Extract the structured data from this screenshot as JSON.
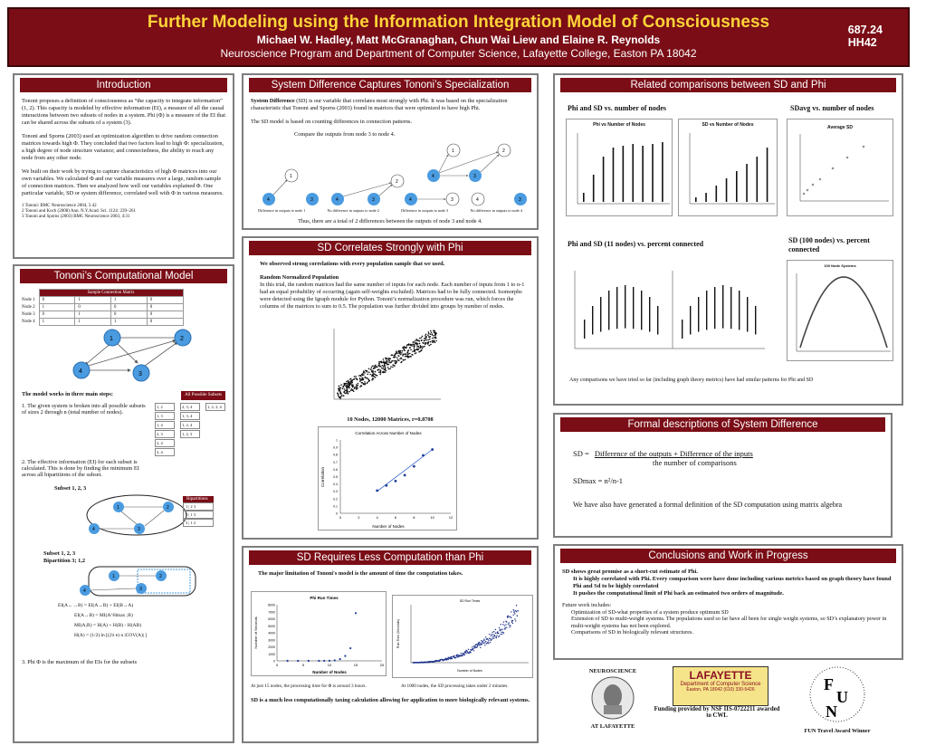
{
  "header": {
    "title": "Further Modeling using the Information Integration Model of Consciousness",
    "authors": "Michael W. Hadley, Matt McGranaghan, Chun Wai Liew and Elaine R. Reynolds",
    "affiliation": "Neuroscience Program and Department of Computer Science, Lafayette College, Easton PA 18042",
    "code1": "687.24",
    "code2": "HH42"
  },
  "intro": {
    "title": "Introduction",
    "p1": "Tononi proposes a definition of consciousness as “the capacity to integrate information” (1, 2). This capacity is modeled by effective information (EI), a measure of all the causal interactions between two subsets of nodes in a system. Phi (Φ) is a measure of the EI that can be shared across the subsets of a system (3).",
    "p2": "Tononi and Sporns (2003) used an optimization algorithm to drive random connection matrices towards high Φ. They concluded that two factors lead to high Φ: specialization, a high degree of node structure variance; and connectedness, the ability to reach any node from any other node.",
    "p3": "We built on their work by trying to capture characteristics of high Φ matrices into our own variables. We calculated Φ and our variable measures over a large, random sample of connection matrices. Then we analyzed how well our variables explained Φ. One particular variable, SD or system difference, correlated well with Φ in various measures.",
    "refs": [
      "1 Tononi: BMC Neuroscience 2004, 5:42",
      "2 Tononi and Koch (2008) Ann. N.Y.Acad. Sci. 1124: 239–261",
      "3 Tononi and Sporns (2003) BMC Neuroscience 2003, 4:31"
    ]
  },
  "tononi": {
    "title": "Tononi’s Computational Model",
    "matrix_title": "Sample Connection Matrix",
    "row_labels": [
      "Node 1",
      "Node 2",
      "Node 3",
      "Node 4"
    ],
    "matrix": [
      [
        "0",
        "1",
        "1",
        "0"
      ],
      [
        "1",
        "0",
        "0",
        "0"
      ],
      [
        "0",
        "1",
        "0",
        "0"
      ],
      [
        "1",
        "1",
        "1",
        "0"
      ]
    ],
    "steps_heading": "The model works in three main steps:",
    "subsets_label": "All Possible Subsets",
    "step1": "1. The given system is broken into all possible subsets of sizes 2 through n (total number of nodes).",
    "subsets": [
      [
        "1, 2",
        "1, 3",
        "1, 4",
        "2, 3",
        "2, 4",
        "3, 4"
      ],
      [
        "2, 3, 4",
        "1, 3, 4",
        "1, 2, 4",
        "1, 2, 3"
      ],
      [
        "1, 2, 3, 4"
      ]
    ],
    "step2": "2. The effective information (EI) for each subset is calculated. This is done by finding the minimum EI across all bipartitions of the subset.",
    "subset_label": "Subset 1, 2, 3",
    "bip_title": "Bipartitions",
    "bip_items": [
      "1 | 2 3",
      "2 | 1 3",
      "3 | 1 2"
    ],
    "subset_label2": "Subset 1, 2, 3",
    "bip_label": "Bipartition 3; 1,2",
    "eq1": "EI(A←→B) = EI(A→B) + EI(B→A)",
    "eq2": "EI(A→B) = MI(A^Hmax ;B)",
    "eq3": "MI(A;B) = H(A) + H(B) - H(AB)",
    "eq4": "H(A) = (1/2) ln [(2π e) n |COV(A)| ]",
    "step3": "3. Phi Φ is the maximum of the EIs for the subsets"
  },
  "sysdiff": {
    "title": "System Difference Captures Tononi’s Specialization",
    "p1_bold": "System Difference",
    "p1": " (SD) is our variable that correlates most strongly with Phi. It was based on the specialization characteristic that Tononi and Sporns (2003) found in matrices that were optimized to have high Phi.",
    "p2": "The SD model is based on counting differences in connection patterns.",
    "compare": "Compare the outputs from node 3 to node 4.",
    "labels": [
      "Difference in outputs to node 1",
      "No difference in outputs to node 2",
      "Difference in outputs to node 3",
      "No difference in outputs to node 4"
    ],
    "total": "Thus, there are a total of 2 differences between the outputs of node 3 and node 4."
  },
  "sdcorr": {
    "title": "SD Correlates Strongly with Phi",
    "intro": "We observed strong correlations with every population sample that we used.",
    "heading": "Random Normalized Population",
    "body": "In this trial, the random matrices had the same number of inputs for each node. Each number of inputs from 1 to n-1 had an equal probability of occurring (again self-weights excluded). Matrices had to be fully connected. Isomorphs were detected using the Igraph module for Python. Tononi’s normalization procedure was run, which forces the columns of the matrices to sum to 0.5. The population was further divided into groups by number of nodes.",
    "scatter_caption": "10 Nodes, 12000 Matrices, r=0.8708"
  },
  "lesscomp": {
    "title": "SD Requires Less Computation than Phi",
    "intro": "The major limitation of Tononi's model is the amount of time the computation takes.",
    "note1": "At just 15 nodes, the processing time for Φ is around 3 hours.",
    "note2": "At 1000 nodes, the SD processing takes under 2 minutes.",
    "conclusion": "SD is a much less computationally taxing calculation allowing for application to more biologically relevant systems."
  },
  "related": {
    "title": "Related comparisons between SD and Phi",
    "h1": "Phi and SD vs. number of nodes",
    "h2": "SDavg vs. number of nodes",
    "h3": "Phi and SD (11 nodes) vs. percent connected",
    "h4": "SD (100 nodes) vs. percent connected",
    "footer": "Any comparisons we have tried so far (including graph theory metrics) have had similar patterns for Phi and SD"
  },
  "formal": {
    "title": "Formal descriptions of System Difference",
    "sd_lhs": "SD =",
    "sd_num": "Difference of the outputs + Difference of the inputs",
    "sd_den": "the number of comparisons",
    "sdmax": "SDmax = n²/n-1",
    "note": "We have also have generated a formal definition of the SD computation using matrix algebra"
  },
  "conclusions": {
    "title": "Conclusions and Work in Progress",
    "lines": [
      "SD shows great promise as a short-cut estimate of Phi.",
      "It is highly correlated with Phi. Every comparison were have done including various metrics based on graph theory have found Phi and Sd to be highly correlated",
      "It pushes the computational limit of Phi back an estimated two orders of magnitude."
    ],
    "future_title": "Future work includes:",
    "future": [
      "Optimization of SD-what properties of a system produce optimum SD",
      "Extension of SD to multi-weight systems. The populations used so far have all been for single weight systems, so SD’s explanatory power in multi-weight systems has not been explored.",
      "Comparisons of SD in biologically relevant structures."
    ]
  },
  "footer": {
    "neuro_top": "NEUROSCIENCE",
    "neuro_bottom": "AT LAFAYETTE",
    "laf_name": "LAFAYETTE",
    "laf_dept": "Department of Computer Science",
    "laf_addr": "Easton, PA 18042 (610) 330-5426",
    "funding": "Funding provided by NSF IIS-0722211 awarded to CWL",
    "fun": "FUN Travel Award Winner"
  },
  "chart_data": [
    {
      "type": "scatter",
      "title": "Correlation Across Number of Nodes",
      "xlabel": "Number of Nodes",
      "ylabel": "Correlation",
      "xlim": [
        0,
        12
      ],
      "ylim": [
        0,
        1
      ],
      "x": [
        4,
        5,
        6,
        7,
        8,
        9,
        10
      ],
      "y": [
        0.31,
        0.38,
        0.44,
        0.52,
        0.64,
        0.79,
        0.87
      ]
    },
    {
      "type": "line",
      "title": "Phi Run Times",
      "xlabel": "Number of Nodes",
      "ylabel": "Number of Seconds",
      "xlim": [
        0,
        20
      ],
      "ylim": [
        0,
        8000
      ],
      "x": [
        2,
        4,
        6,
        8,
        9,
        10,
        11,
        12,
        13,
        14,
        15
      ],
      "y": [
        0,
        0,
        0,
        2,
        5,
        20,
        70,
        250,
        700,
        1800,
        6800
      ]
    },
    {
      "type": "scatter",
      "title": "SD Run Times",
      "xlabel": "Number of Nodes",
      "ylabel": "Run Time (Seconds)",
      "xlim": [
        0,
        1100
      ],
      "ylim": [
        0,
        160
      ]
    }
  ]
}
